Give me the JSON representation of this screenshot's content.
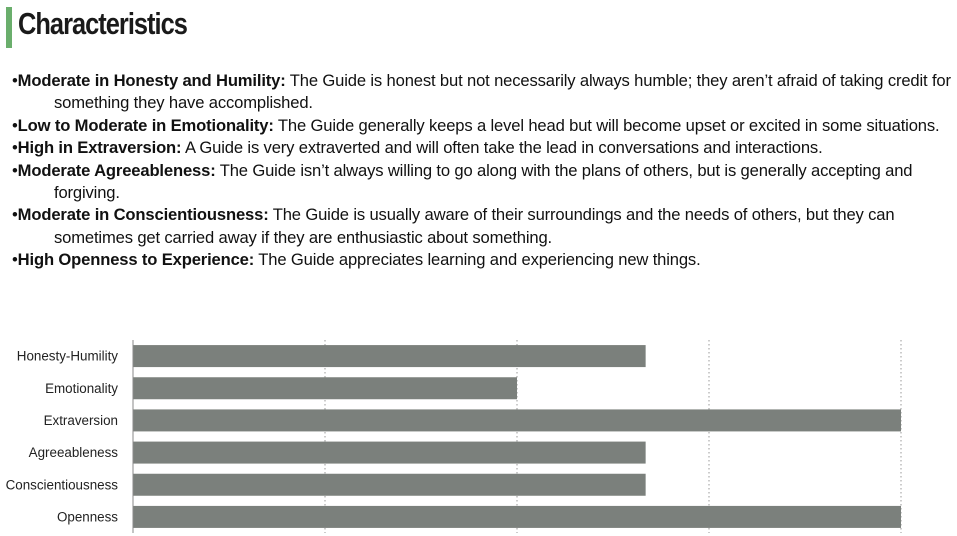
{
  "heading": {
    "title": "Characteristics",
    "accent_color": "#6aae6c"
  },
  "traits": [
    {
      "bullet": "•",
      "label": "Moderate in Honesty and Humility:",
      "text": " The Guide is honest but not necessarily always humble; they aren’t afraid of taking credit for something they have accomplished."
    },
    {
      "bullet": "•",
      "label": "Low to Moderate in Emotionality:",
      "text": " The Guide generally keeps a level head but will become upset or excited in some situations."
    },
    {
      "bullet": "•",
      "label": "High in Extraversion:",
      "text": " A Guide is very extraverted and will often take the lead in conversations and interactions."
    },
    {
      "bullet": "•",
      "label": "Moderate Agreeableness:",
      "text": " The Guide isn’t always willing to go along with the plans of others, but is generally accepting and forgiving."
    },
    {
      "bullet": "•",
      "label": "Moderate in Conscientiousness:",
      "text": " The Guide is usually aware of their surroundings and the needs of others, but they can sometimes get carried away if they are enthusiastic about something."
    },
    {
      "bullet": "•",
      "label": "High Openness to Experience:",
      "text": " The Guide appreciates learning and experiencing new things."
    }
  ],
  "chart_data": {
    "type": "bar",
    "orientation": "horizontal",
    "categories": [
      "Honesty-Humility",
      "Emotionality",
      "Extraversion",
      "Agreeableness",
      "Conscientiousness",
      "Openness"
    ],
    "values": [
      2.67,
      2,
      4,
      2.67,
      2.67,
      4
    ],
    "xlim": [
      0,
      4
    ],
    "x_gridlines": [
      1,
      2,
      3,
      4
    ],
    "grid": true,
    "gridline_style": "dotted",
    "bar_color": "#7b807c",
    "x_tick_labels_shown": false,
    "legend": "none"
  }
}
